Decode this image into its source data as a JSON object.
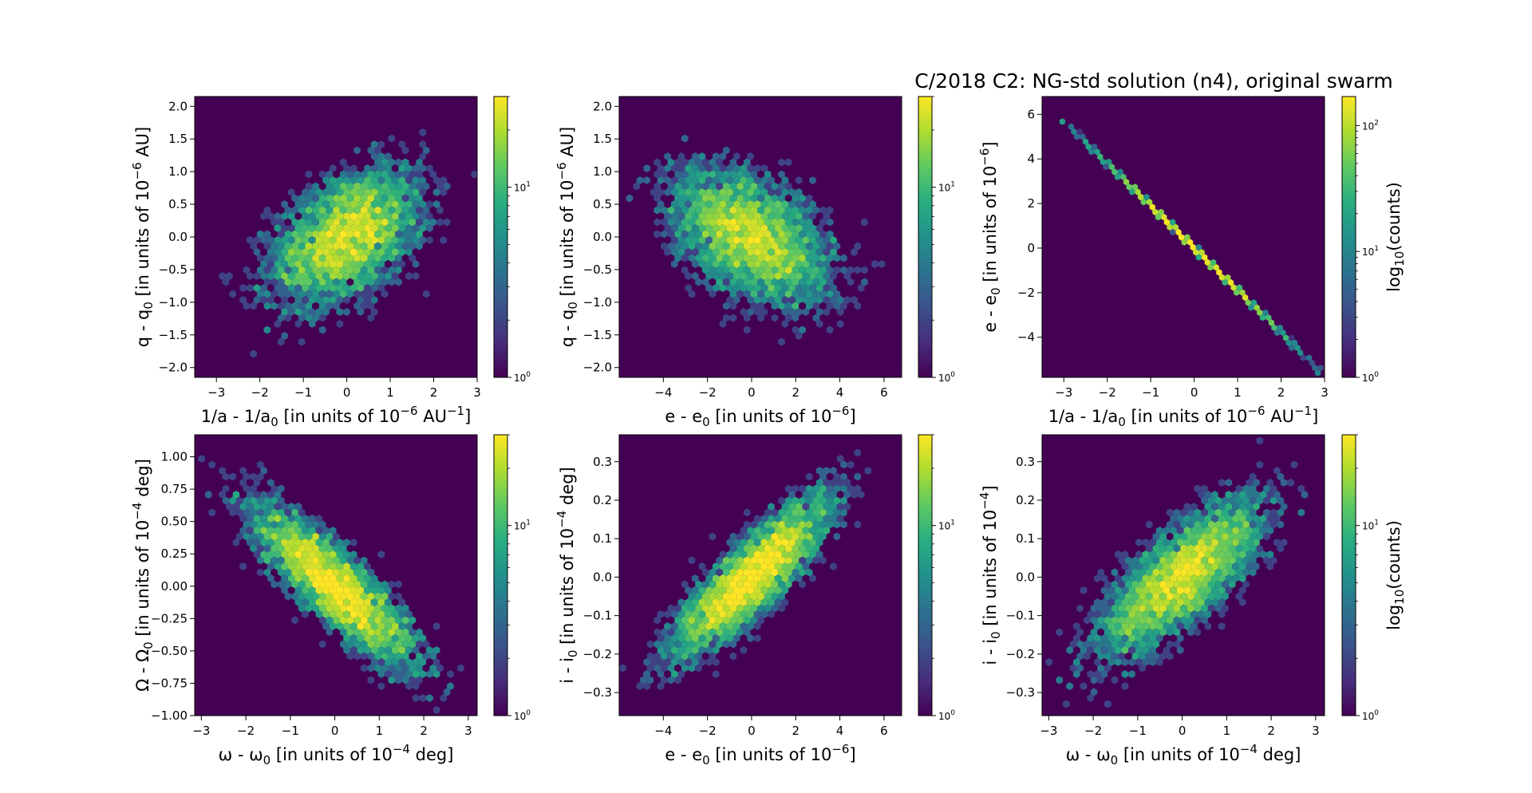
{
  "figure_title": "C/2018 C2: NG-std solution (n4), original swarm",
  "colors": {
    "background": "#440154",
    "low": "#3b528b",
    "mid": "#21918c",
    "high": "#5ec962",
    "peak": "#fde725"
  },
  "colormap": "viridis",
  "chart_data": [
    {
      "type": "heatmap",
      "subtype": "hexbin",
      "x": {
        "label": {
          "pre": "1/a - 1/a",
          "sub": "0",
          "mid": " [in units of 10",
          "sup": "−6",
          "post": " AU",
          "sup2": "−1",
          "end": "]"
        },
        "lim": [
          -3.5,
          3.0
        ],
        "ticks": [
          -3,
          -2,
          -1,
          0,
          1,
          2,
          3
        ]
      },
      "y": {
        "label": {
          "pre": "q - q",
          "sub": "0",
          "mid": " [in units of 10",
          "sup": "−6",
          "post": " AU]"
        },
        "lim": [
          -2.15,
          2.15
        ],
        "ticks": [
          -2.0,
          -1.5,
          -1.0,
          -0.5,
          0.0,
          0.5,
          1.0,
          1.5,
          2.0
        ],
        "tick_decimals": 1
      },
      "distribution": {
        "mean": [
          0.0,
          0.0
        ],
        "std": [
          0.9,
          0.55
        ],
        "correlation": 0.45
      },
      "colorbar": {
        "scale": "log",
        "range": [
          1,
          30
        ],
        "major": [
          {
            "v": 1,
            "label": "10",
            "sup": "0"
          },
          {
            "v": 10,
            "label": "10",
            "sup": "1"
          }
        ],
        "label": null
      }
    },
    {
      "type": "heatmap",
      "subtype": "hexbin",
      "x": {
        "label": {
          "pre": "e - e",
          "sub": "0",
          "mid": " [in units of 10",
          "sup": "−6",
          "end": "]"
        },
        "lim": [
          -6.0,
          6.8
        ],
        "ticks": [
          -4,
          -2,
          0,
          2,
          4,
          6
        ]
      },
      "y": {
        "label": {
          "pre": "q - q",
          "sub": "0",
          "mid": " [in units of 10",
          "sup": "−6",
          "post": " AU]"
        },
        "lim": [
          -2.15,
          2.15
        ],
        "ticks": [
          -2.0,
          -1.5,
          -1.0,
          -0.5,
          0.0,
          0.5,
          1.0,
          1.5,
          2.0
        ],
        "tick_decimals": 1
      },
      "distribution": {
        "mean": [
          0.0,
          0.0
        ],
        "std": [
          1.9,
          0.55
        ],
        "correlation": -0.45
      },
      "colorbar": {
        "scale": "log",
        "range": [
          1,
          30
        ],
        "major": [
          {
            "v": 1,
            "label": "10",
            "sup": "0"
          },
          {
            "v": 10,
            "label": "10",
            "sup": "1"
          }
        ],
        "label": null
      }
    },
    {
      "type": "heatmap",
      "subtype": "hexbin",
      "x": {
        "label": {
          "pre": "1/a - 1/a",
          "sub": "0",
          "mid": " [in units of 10",
          "sup": "−6",
          "post": " AU",
          "sup2": "−1",
          "end": "]"
        },
        "lim": [
          -3.5,
          3.0
        ],
        "ticks": [
          -3,
          -2,
          -1,
          0,
          1,
          2,
          3
        ]
      },
      "y": {
        "label": {
          "pre": "e - e",
          "sub": "0",
          "mid": " [in units of 10",
          "sup": "−6",
          "end": "]"
        },
        "lim": [
          -5.8,
          6.8
        ],
        "ticks": [
          -4,
          -2,
          0,
          2,
          4,
          6
        ],
        "tick_decimals": 0
      },
      "distribution": {
        "line": {
          "from": [
            -3.0,
            5.7
          ],
          "to": [
            2.9,
            -5.5
          ]
        }
      },
      "colorbar": {
        "scale": "log",
        "range": [
          1,
          170
        ],
        "major": [
          {
            "v": 1,
            "label": "10",
            "sup": "0"
          },
          {
            "v": 10,
            "label": "10",
            "sup": "1"
          },
          {
            "v": 100,
            "label": "10",
            "sup": "2"
          }
        ],
        "label": {
          "pre": "log",
          "sub": "10",
          "post": "(counts)"
        }
      }
    },
    {
      "type": "heatmap",
      "subtype": "hexbin",
      "x": {
        "label": {
          "pre": "ω - ω",
          "sub": "0",
          "mid": " [in units of 10",
          "sup": "−4",
          "post": " deg]"
        },
        "lim": [
          -3.15,
          3.2
        ],
        "ticks": [
          -3,
          -2,
          -1,
          0,
          1,
          2,
          3
        ]
      },
      "y": {
        "label": {
          "pre": "Ω - Ω",
          "sub": "0",
          "mid": " [in units of 10",
          "sup": "−4",
          "post": " deg]"
        },
        "lim": [
          -1.0,
          1.17
        ],
        "ticks": [
          -1.0,
          -0.75,
          -0.5,
          -0.25,
          0.0,
          0.25,
          0.5,
          0.75,
          1.0
        ],
        "tick_decimals": 2
      },
      "distribution": {
        "mean": [
          0.0,
          0.0
        ],
        "std": [
          1.0,
          0.33
        ],
        "correlation": -0.85
      },
      "colorbar": {
        "scale": "log",
        "range": [
          1,
          30
        ],
        "major": [
          {
            "v": 1,
            "label": "10",
            "sup": "0"
          },
          {
            "v": 10,
            "label": "10",
            "sup": "1"
          }
        ],
        "label": null
      }
    },
    {
      "type": "heatmap",
      "subtype": "hexbin",
      "x": {
        "label": {
          "pre": "e - e",
          "sub": "0",
          "mid": " [in units of 10",
          "sup": "−6",
          "end": "]"
        },
        "lim": [
          -6.0,
          6.8
        ],
        "ticks": [
          -4,
          -2,
          0,
          2,
          4,
          6
        ]
      },
      "y": {
        "label": {
          "pre": "i - i",
          "sub": "0",
          "mid": " [in units of 10",
          "sup": "−4",
          "post": " deg]"
        },
        "lim": [
          -0.36,
          0.37
        ],
        "ticks": [
          -0.3,
          -0.2,
          -0.1,
          0.0,
          0.1,
          0.2,
          0.3
        ],
        "tick_decimals": 1
      },
      "distribution": {
        "mean": [
          0.0,
          0.0
        ],
        "std": [
          1.9,
          0.11
        ],
        "correlation": 0.85
      },
      "colorbar": {
        "scale": "log",
        "range": [
          1,
          30
        ],
        "major": [
          {
            "v": 1,
            "label": "10",
            "sup": "0"
          },
          {
            "v": 10,
            "label": "10",
            "sup": "1"
          }
        ],
        "label": null
      }
    },
    {
      "type": "heatmap",
      "subtype": "hexbin",
      "x": {
        "label": {
          "pre": "ω - ω",
          "sub": "0",
          "mid": " [in units of 10",
          "sup": "−4",
          "post": " deg]"
        },
        "lim": [
          -3.15,
          3.2
        ],
        "ticks": [
          -3,
          -2,
          -1,
          0,
          1,
          2,
          3
        ]
      },
      "y": {
        "label": {
          "pre": "i - i",
          "sub": "0",
          "mid": " [in units of 10",
          "sup": "−4",
          "end": "]"
        },
        "lim": [
          -0.36,
          0.37
        ],
        "ticks": [
          -0.3,
          -0.2,
          -0.1,
          0.0,
          0.1,
          0.2,
          0.3
        ],
        "tick_decimals": 1
      },
      "distribution": {
        "mean": [
          0.0,
          0.0
        ],
        "std": [
          1.0,
          0.11
        ],
        "correlation": 0.75
      },
      "colorbar": {
        "scale": "log",
        "range": [
          1,
          30
        ],
        "major": [
          {
            "v": 1,
            "label": "10",
            "sup": "0"
          },
          {
            "v": 10,
            "label": "10",
            "sup": "1"
          }
        ],
        "label": {
          "pre": "log",
          "sub": "10",
          "post": "(counts)"
        }
      }
    }
  ]
}
